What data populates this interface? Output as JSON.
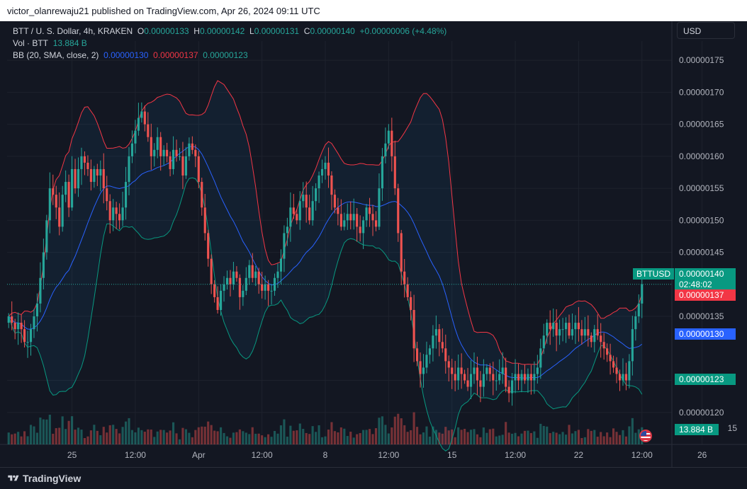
{
  "header": {
    "published_line": "victor_olanrewaju21 published on TradingView.com, Apr 26, 2024 09:11 UTC"
  },
  "legend": {
    "symbol": "BTT / U. S. Dollar, 4h, KRAKEN",
    "o_label": "O",
    "o": "0.00000133",
    "h_label": "H",
    "h": "0.00000142",
    "l_label": "L",
    "l": "0.00000131",
    "c_label": "C",
    "c": "0.00000140",
    "change": "+0.00000006 (+4.48%)",
    "vol_label": "Vol · BTT",
    "vol_value": "13.884 B",
    "bb_label": "BB (20, SMA, close, 2)",
    "bb_basis": "0.00000130",
    "bb_upper": "0.00000137",
    "bb_lower": "0.00000123"
  },
  "currency_button": "USD",
  "price_tags": {
    "symbol_tag": "BTTUSD",
    "last_price": "0.00000140",
    "countdown": "02:48:02",
    "bb_upper": "0.00000137",
    "bb_basis": "0.00000130",
    "bb_lower": "0.00000123",
    "volume": "13.884 B"
  },
  "colors": {
    "background": "#131722",
    "up": "#26a69a",
    "down": "#ef5350",
    "bb_upper": "#f23645",
    "bb_basis": "#2962ff",
    "bb_lower": "#089981"
  },
  "footer": {
    "brand": "TradingView"
  },
  "chart_data": {
    "type": "candlestick",
    "title": "BTT / U. S. Dollar, 4h, KRAKEN",
    "y_axis_ticks": [
      1.75e-06,
      1.7e-06,
      1.65e-06,
      1.6e-06,
      1.55e-06,
      1.5e-06,
      1.45e-06,
      1.35e-06,
      1.25e-06,
      1.2e-06
    ],
    "y_axis_labels": [
      "0.00000175",
      "0.00000170",
      "0.00000165",
      "0.00000160",
      "0.00000155",
      "0.00000150",
      "0.00000145",
      "0.00000135",
      "0.00000125",
      "0.00000120"
    ],
    "y_range": [
      1.15e-06,
      1.78e-06
    ],
    "volume_axis_label": "15",
    "x_axis_labels": [
      "25",
      "12:00",
      "Apr",
      "12:00",
      "8",
      "12:00",
      "15",
      "12:00",
      "22",
      "12:00",
      "26"
    ],
    "x_axis_bar_index": [
      20,
      40,
      60,
      80,
      100,
      120,
      140,
      160,
      180,
      200,
      219
    ],
    "last_price": 1.4e-06,
    "bb_upper_last": 1.37e-06,
    "bb_basis_last": 1.3e-06,
    "bb_lower_last": 1.23e-06,
    "close_series": [
      1.35,
      1.34,
      1.33,
      1.34,
      1.33,
      1.31,
      1.31,
      1.33,
      1.35,
      1.37,
      1.41,
      1.45,
      1.5,
      1.55,
      1.54,
      1.52,
      1.49,
      1.54,
      1.56,
      1.52,
      1.58,
      1.55,
      1.58,
      1.6,
      1.59,
      1.58,
      1.56,
      1.58,
      1.57,
      1.58,
      1.55,
      1.53,
      1.5,
      1.52,
      1.51,
      1.5,
      1.52,
      1.56,
      1.6,
      1.62,
      1.64,
      1.66,
      1.67,
      1.65,
      1.63,
      1.6,
      1.61,
      1.63,
      1.6,
      1.61,
      1.6,
      1.58,
      1.61,
      1.6,
      1.6,
      1.57,
      1.6,
      1.62,
      1.61,
      1.6,
      1.56,
      1.52,
      1.48,
      1.44,
      1.4,
      1.38,
      1.36,
      1.39,
      1.4,
      1.41,
      1.4,
      1.42,
      1.41,
      1.38,
      1.39,
      1.41,
      1.43,
      1.41,
      1.42,
      1.4,
      1.39,
      1.4,
      1.39,
      1.39,
      1.41,
      1.42,
      1.44,
      1.48,
      1.49,
      1.52,
      1.51,
      1.5,
      1.53,
      1.54,
      1.52,
      1.5,
      1.53,
      1.55,
      1.57,
      1.58,
      1.59,
      1.57,
      1.54,
      1.52,
      1.51,
      1.49,
      1.5,
      1.51,
      1.5,
      1.51,
      1.49,
      1.48,
      1.5,
      1.52,
      1.51,
      1.5,
      1.49,
      1.55,
      1.6,
      1.62,
      1.64,
      1.6,
      1.55,
      1.48,
      1.42,
      1.4,
      1.38,
      1.36,
      1.3,
      1.28,
      1.26,
      1.27,
      1.29,
      1.3,
      1.32,
      1.33,
      1.31,
      1.3,
      1.28,
      1.27,
      1.26,
      1.25,
      1.27,
      1.26,
      1.25,
      1.24,
      1.26,
      1.27,
      1.25,
      1.24,
      1.26,
      1.27,
      1.26,
      1.25,
      1.25,
      1.26,
      1.27,
      1.24,
      1.23,
      1.25,
      1.26,
      1.25,
      1.26,
      1.25,
      1.26,
      1.25,
      1.26,
      1.27,
      1.3,
      1.32,
      1.34,
      1.33,
      1.34,
      1.32,
      1.33,
      1.33,
      1.34,
      1.32,
      1.33,
      1.34,
      1.33,
      1.32,
      1.33,
      1.32,
      1.31,
      1.33,
      1.32,
      1.31,
      1.3,
      1.29,
      1.28,
      1.27,
      1.26,
      1.25,
      1.26,
      1.25,
      1.28,
      1.33,
      1.35,
      1.37,
      1.4
    ],
    "close_series_unit": "1e-6 USD"
  }
}
